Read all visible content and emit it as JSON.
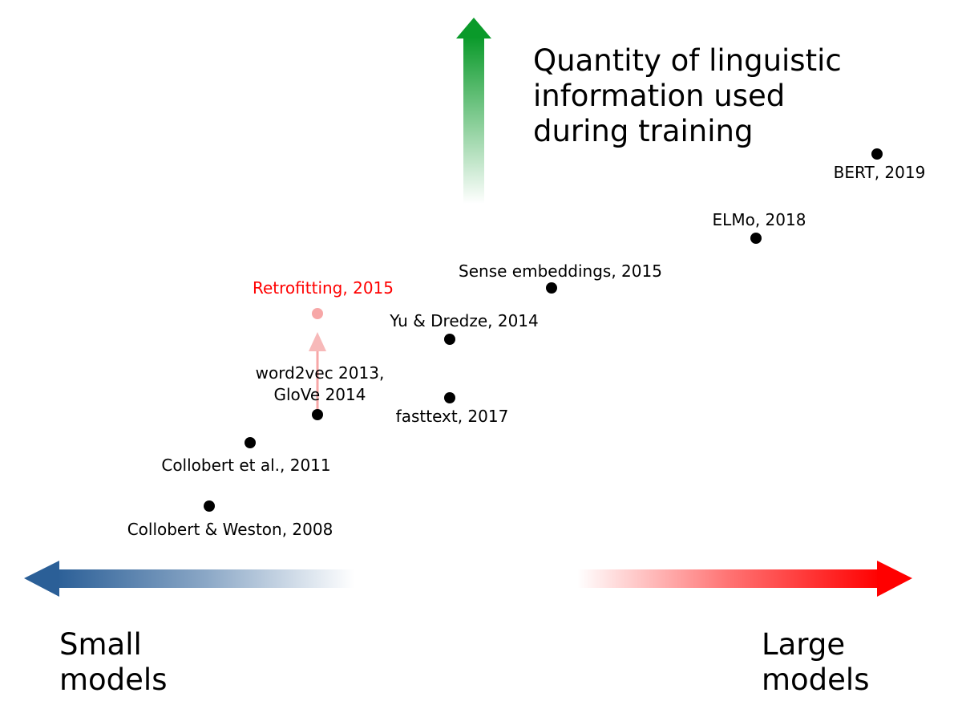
{
  "colors": {
    "up_arrow": "#0a9a2a",
    "left_arrow": "#2b5f97",
    "right_arrow": "#ff0000",
    "highlight": "#ff0000",
    "highlight_faded": "#f7a7a7",
    "point": "#000000"
  },
  "axes": {
    "up_title": [
      "Quantity of linguistic",
      "information used",
      "during training"
    ],
    "left_title": [
      "Small",
      "models"
    ],
    "right_title": [
      "Large",
      "models"
    ]
  },
  "points": [
    {
      "id": "collobert-weston",
      "label": "Collobert & Weston, 2008"
    },
    {
      "id": "collobert-2011",
      "label": "Collobert et al., 2011"
    },
    {
      "id": "word2vec-glove",
      "label": [
        "word2vec 2013,",
        "GloVe 2014"
      ]
    },
    {
      "id": "fasttext",
      "label": "fasttext, 2017"
    },
    {
      "id": "yu-dredze",
      "label": "Yu & Dredze, 2014"
    },
    {
      "id": "sense-embeddings",
      "label": "Sense embeddings, 2015"
    },
    {
      "id": "elmo",
      "label": "ELMo, 2018"
    },
    {
      "id": "bert",
      "label": "BERT, 2019"
    },
    {
      "id": "retrofitting",
      "label": "Retrofitting, 2015",
      "highlighted": true
    }
  ]
}
